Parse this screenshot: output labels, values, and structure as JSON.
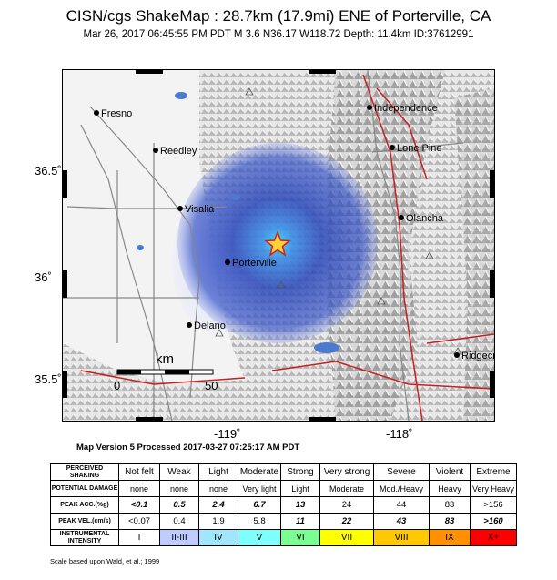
{
  "header": {
    "title": "CISN/cgs ShakeMap : 28.7km (17.9mi) ENE of Porterville, CA",
    "subtitle": "Mar 26, 2017 06:45:55 PM PDT   M 3.6   N36.17 W118.72   Depth: 11.4km   ID:37612991"
  },
  "map": {
    "lat_ticks": [
      "36.5˚",
      "36˚",
      "35.5˚"
    ],
    "lon_ticks": [
      "-119˚",
      "-118˚"
    ],
    "cities": [
      "Fresno",
      "Reedley",
      "Visalia",
      "Porterville",
      "Delano",
      "Independence",
      "Lone Pine",
      "Olancha",
      "Ridgecr"
    ],
    "scale_bar": {
      "unit": "km",
      "start": "0",
      "end": "50"
    },
    "epicenter_symbol": "star-icon"
  },
  "version_line": "Map Version 5 Processed 2017-03-27 07:25:17 AM PDT",
  "legend": {
    "row_headers": [
      "PERCEIVED SHAKING",
      "POTENTIAL DAMAGE",
      "PEAK ACC.(%g)",
      "PEAK VEL.(cm/s)",
      "INSTRUMENTAL INTENSITY"
    ],
    "shaking": [
      "Not felt",
      "Weak",
      "Light",
      "Moderate",
      "Strong",
      "Very strong",
      "Severe",
      "Violent",
      "Extreme"
    ],
    "damage": [
      "none",
      "none",
      "none",
      "Very light",
      "Light",
      "Moderate",
      "Mod./Heavy",
      "Heavy",
      "Very Heavy"
    ],
    "acc": [
      "<0.1",
      "0.5",
      "2.4",
      "6.7",
      "13",
      "24",
      "44",
      "83",
      ">156"
    ],
    "vel": [
      "<0.07",
      "0.4",
      "1.9",
      "5.8",
      "11",
      "22",
      "43",
      "83",
      ">160"
    ],
    "intensity": [
      "I",
      "II-III",
      "IV",
      "V",
      "VI",
      "VII",
      "VIII",
      "IX",
      "X+"
    ],
    "colors": [
      "#ffffff",
      "#bfccff",
      "#a0e6ff",
      "#80ffff",
      "#7aff93",
      "#ffff00",
      "#ffc800",
      "#ff9100",
      "#ff0000"
    ]
  },
  "scale_note": "Scale based upon Wald, et al.; 1999"
}
